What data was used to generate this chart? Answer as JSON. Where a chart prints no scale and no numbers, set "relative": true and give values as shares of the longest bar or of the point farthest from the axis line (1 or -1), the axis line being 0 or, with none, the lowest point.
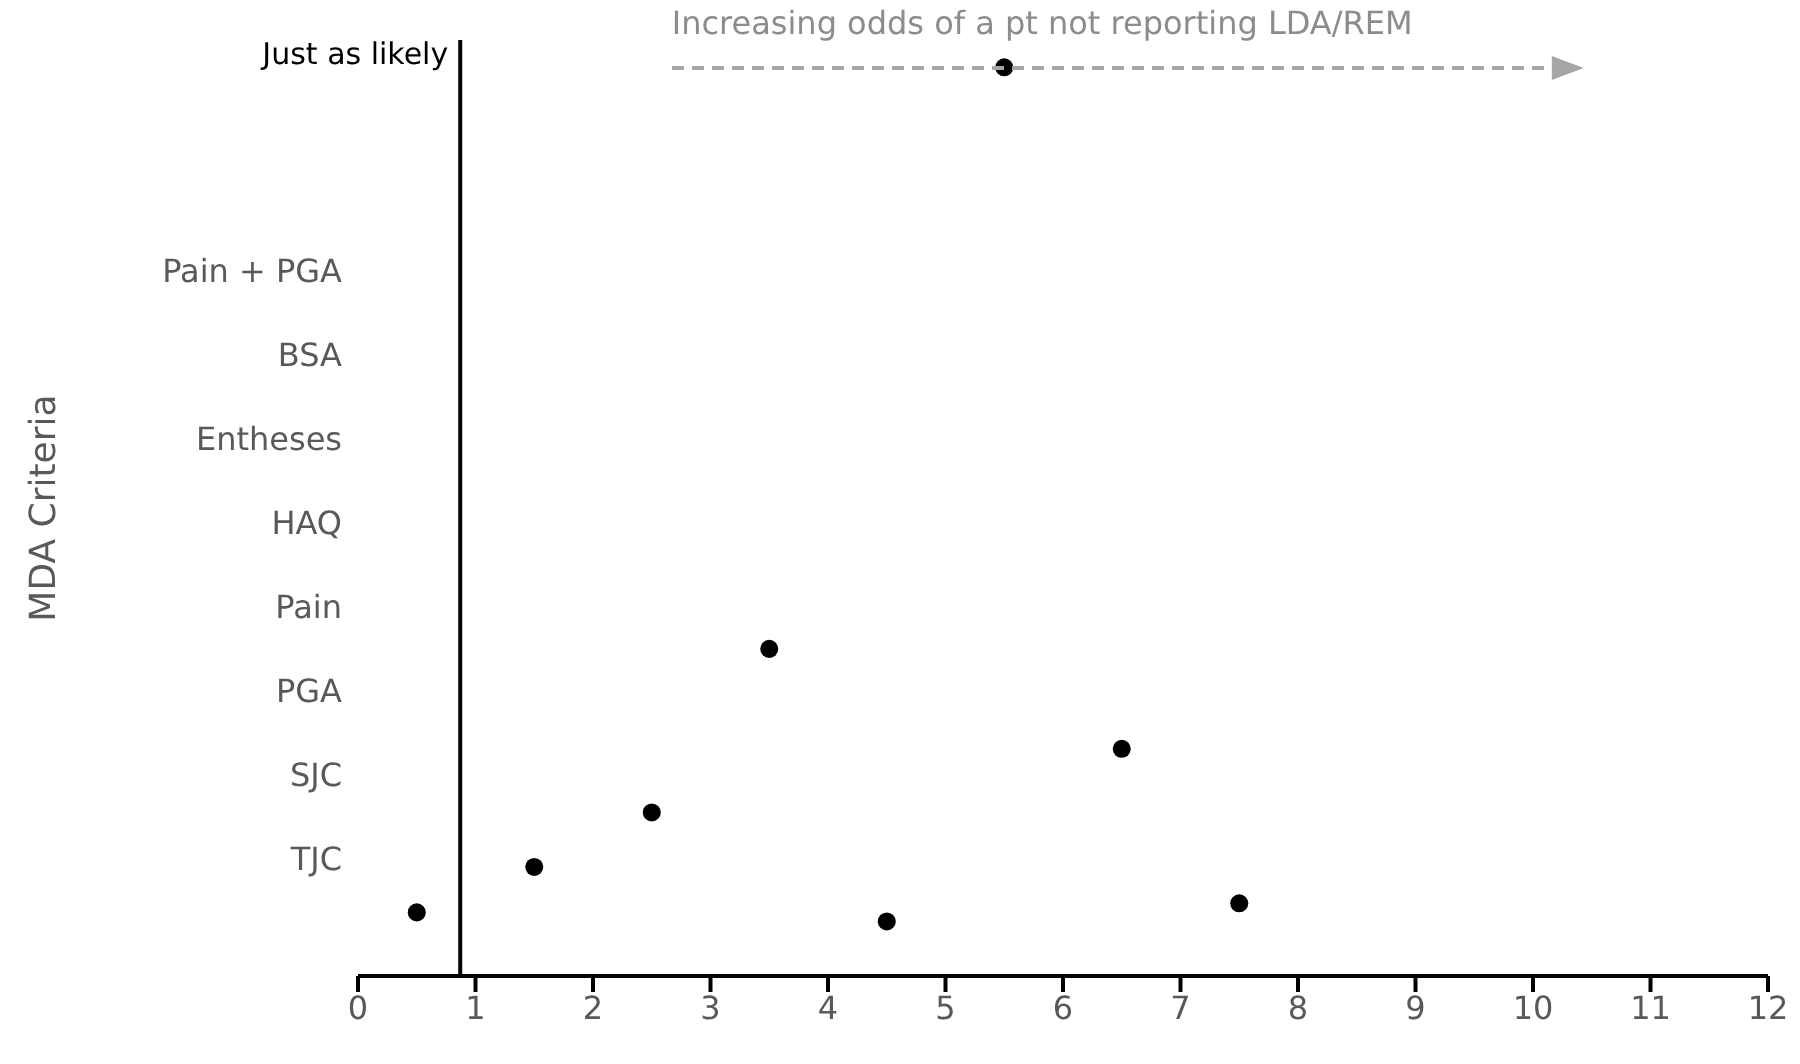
{
  "chart_data": {
    "type": "scatter",
    "relative": true,
    "x": [
      0.5,
      1.5,
      2.5,
      3.5,
      4.5,
      5.5,
      6.5,
      7.5
    ],
    "values": [
      0.07,
      0.12,
      0.18,
      0.36,
      0.06,
      1,
      0.25,
      0.08
    ],
    "color": "#000000",
    "marker": "circle",
    "grid": false,
    "legend": false,
    "xlim": [
      0,
      12
    ],
    "xticks": [
      0,
      1,
      2,
      3,
      4,
      5,
      6,
      7,
      8,
      9,
      10,
      11,
      12
    ],
    "ref_lines": [
      {
        "axis": "x",
        "value": 0.87,
        "label": "Just as likely",
        "color": "#000000"
      }
    ],
    "annotations": [
      "Increasing odds of a pt not reporting LDA/REM",
      "MDA Criteria",
      "Pain + PGA",
      "BSA",
      "Entheses",
      "HAQ",
      "Pain",
      "PGA",
      "SJC",
      "TJC"
    ]
  }
}
